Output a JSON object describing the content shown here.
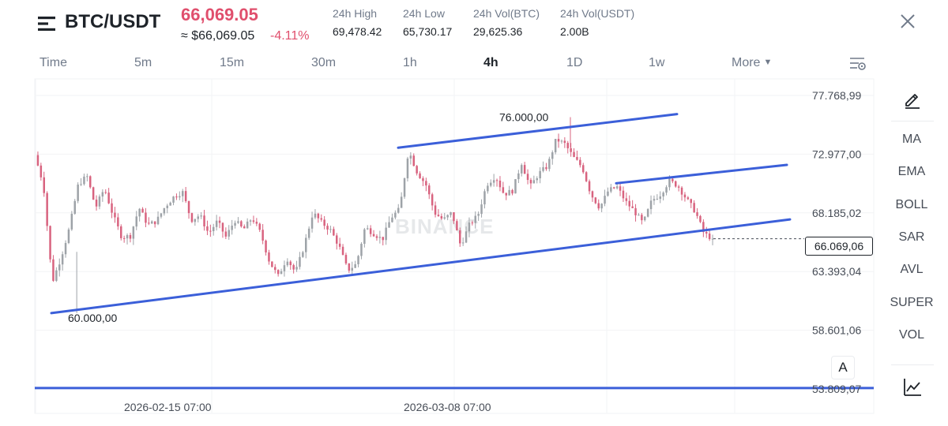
{
  "header": {
    "pair": "BTC/USDT",
    "last_price": "66,069.05",
    "usd_value": "≈ $66,069.05",
    "change_pct": "-4.11%",
    "stats": [
      {
        "label": "24h High",
        "value": "69,478.42"
      },
      {
        "label": "24h Low",
        "value": "65,730.17"
      },
      {
        "label": "24h Vol(BTC)",
        "value": "29,625.36"
      },
      {
        "label": "24h Vol(USDT)",
        "value": "2.00B"
      }
    ]
  },
  "tabs": {
    "items": [
      "Time",
      "5m",
      "15m",
      "30m",
      "1h",
      "4h",
      "1D",
      "1w",
      "More"
    ],
    "active": "4h"
  },
  "indicators": [
    "MA",
    "EMA",
    "BOLL",
    "SAR",
    "AVL",
    "SUPER",
    "VOL"
  ],
  "icons": {
    "menu": "menu-icon",
    "close": "close-icon",
    "settings": "chart-settings-icon",
    "pencil": "drawing-pencil-icon",
    "depth": "depth-chart-icon"
  },
  "colors": {
    "up": "#9ea3a8",
    "down": "#d8637f",
    "trendline": "#3b5fd9",
    "price_red": "#e04f6d"
  },
  "auto_button": "A",
  "watermark": "BINANCE",
  "chart_data": {
    "type": "candlestick",
    "y_axis_labels": [
      "77.768,99",
      "72.977,00",
      "68.185,02",
      "63.393,04",
      "58.601,06",
      "53.809,07"
    ],
    "y_axis_values": [
      77768.99,
      72977.0,
      68185.02,
      63393.04,
      58601.06,
      53809.07
    ],
    "ylim": [
      53809.07,
      77768.99
    ],
    "x_axis_labels": [
      "2026-02-15 07:00",
      "2026-03-08 07:00"
    ],
    "current_price_label": "66.069,06",
    "current_price": 66069.06,
    "annotations": [
      {
        "text": "76.000,00",
        "value": 76000.0
      },
      {
        "text": "60.000,00",
        "value": 60000.0
      }
    ],
    "close_path": [
      72900,
      70500,
      62500,
      64500,
      67000,
      70500,
      71200,
      68600,
      70200,
      68000,
      66200,
      66300,
      68600,
      67200,
      67500,
      68700,
      69500,
      69900,
      67600,
      68000,
      66500,
      67500,
      66200,
      67600,
      66800,
      67800,
      66500,
      64200,
      63000,
      64500,
      63300,
      65500,
      68200,
      67400,
      66800,
      65500,
      63500,
      64000,
      67000,
      66500,
      66000,
      67800,
      68500,
      73300,
      71500,
      70500,
      68200,
      67600,
      68200,
      65500,
      67200,
      68000,
      70500,
      71200,
      69700,
      70000,
      72300,
      70300,
      71400,
      72000,
      74200,
      73800,
      72700,
      71900,
      69700,
      68600,
      70000,
      70300,
      69100,
      68300,
      67300,
      69200,
      69700,
      70800,
      70400,
      69300,
      68300,
      66500,
      66069
    ],
    "trendlines": [
      {
        "name": "support",
        "from_value": 60000,
        "to_value": 67650
      },
      {
        "name": "upper-channel",
        "from_value": 73500,
        "to_value": 76250
      },
      {
        "name": "mid-channel",
        "from_value": 70600,
        "to_value": 72100
      },
      {
        "name": "horizontal",
        "value": 53880
      }
    ]
  }
}
